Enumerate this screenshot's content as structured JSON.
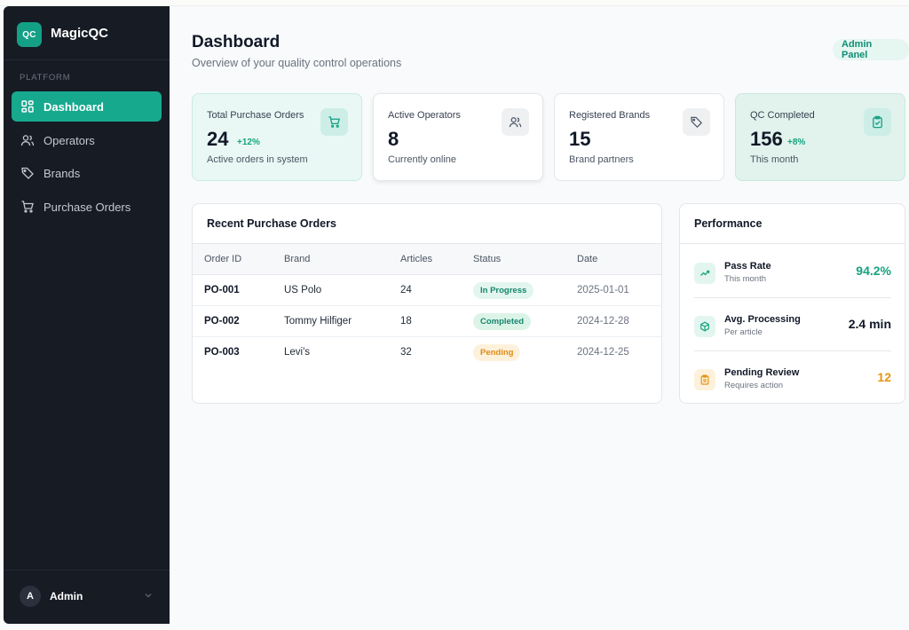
{
  "app": {
    "logo_text": "QC",
    "name": "MagicQC"
  },
  "sidebar": {
    "section_label": "PLATFORM",
    "items": [
      {
        "label": "Dashboard",
        "icon": "dashboard-icon",
        "active": true
      },
      {
        "label": "Operators",
        "icon": "users-icon",
        "active": false
      },
      {
        "label": "Brands",
        "icon": "tag-icon",
        "active": false
      },
      {
        "label": "Purchase Orders",
        "icon": "cart-icon",
        "active": false
      }
    ],
    "user": {
      "initial": "A",
      "name": "Admin"
    }
  },
  "header": {
    "title": "Dashboard",
    "subtitle": "Overview of your quality control operations",
    "badge": "Admin Panel"
  },
  "stats": [
    {
      "label": "Total Purchase Orders",
      "value": "24",
      "change": "+12%",
      "sub": "Active orders in system",
      "icon": "cart-icon"
    },
    {
      "label": "Active Operators",
      "value": "8",
      "change": "",
      "sub": "Currently online",
      "icon": "users-icon"
    },
    {
      "label": "Registered Brands",
      "value": "15",
      "change": "",
      "sub": "Brand partners",
      "icon": "tag-icon"
    },
    {
      "label": "QC Completed",
      "value": "156",
      "change": "+8%",
      "sub": "This month",
      "icon": "clipboard-check-icon"
    }
  ],
  "orders": {
    "title": "Recent Purchase Orders",
    "columns": [
      "Order ID",
      "Brand",
      "Articles",
      "Status",
      "Date"
    ],
    "rows": [
      {
        "id": "PO-001",
        "brand": "US Polo",
        "articles": "24",
        "status": "In Progress",
        "date": "2025-01-01"
      },
      {
        "id": "PO-002",
        "brand": "Tommy Hilfiger",
        "articles": "18",
        "status": "Completed",
        "date": "2024-12-28"
      },
      {
        "id": "PO-003",
        "brand": "Levi's",
        "articles": "32",
        "status": "Pending",
        "date": "2024-12-25"
      }
    ]
  },
  "performance": {
    "title": "Performance",
    "items": [
      {
        "label": "Pass Rate",
        "sub": "This month",
        "value": "94.2%",
        "icon": "trending-up-icon",
        "color": "#16a37f"
      },
      {
        "label": "Avg. Processing",
        "sub": "Per article",
        "value": "2.4 min",
        "icon": "package-icon",
        "color": "#111827"
      },
      {
        "label": "Pending Review",
        "sub": "Requires action",
        "value": "12",
        "icon": "clipboard-icon",
        "color": "#e69512"
      }
    ]
  },
  "colors": {
    "accent": "#17a98e",
    "sidebar_bg": "#161b24",
    "warning": "#e69512"
  }
}
